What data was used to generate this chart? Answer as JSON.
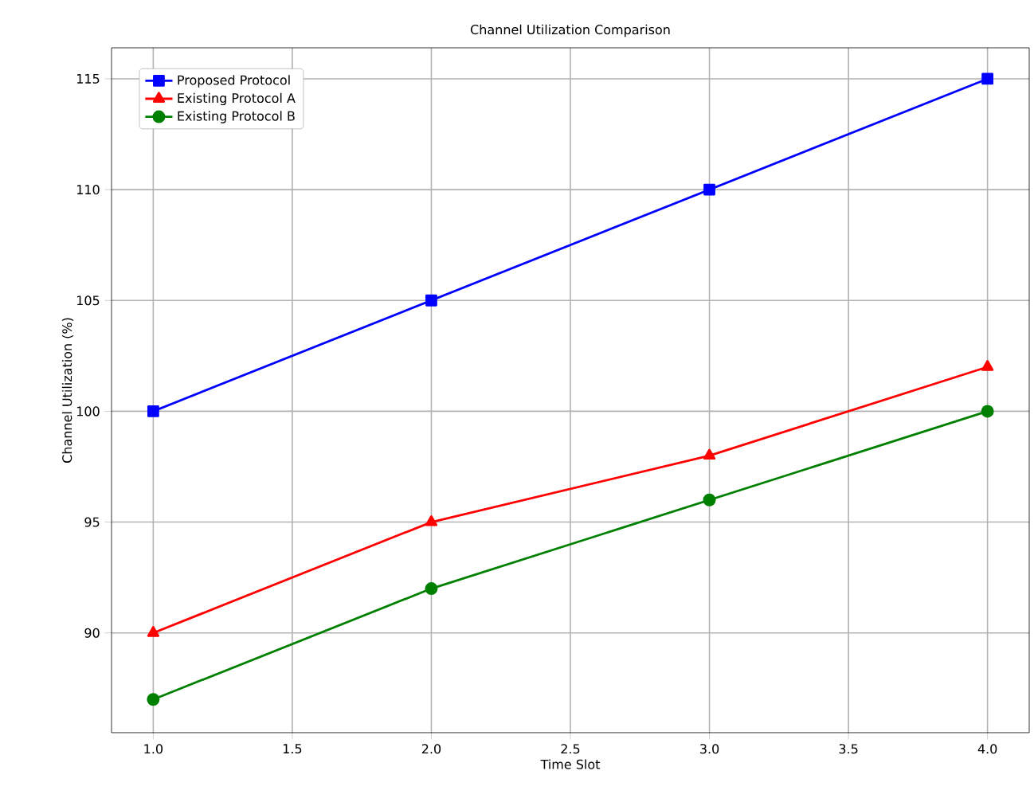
{
  "chart_data": {
    "type": "line",
    "title": "Channel Utilization Comparison",
    "xlabel": "Time Slot",
    "ylabel": "Channel Utilization (%)",
    "x": [
      1,
      2,
      3,
      4
    ],
    "series": [
      {
        "name": "Proposed Protocol",
        "color": "#0000ff",
        "marker": "square",
        "values": [
          100,
          105,
          110,
          115
        ]
      },
      {
        "name": "Existing Protocol A",
        "color": "#ff0000",
        "marker": "triangle",
        "values": [
          90,
          95,
          98,
          102
        ]
      },
      {
        "name": "Existing Protocol B",
        "color": "#008000",
        "marker": "circle",
        "values": [
          87,
          92,
          96,
          100
        ]
      }
    ],
    "xlim": [
      0.85,
      4.15
    ],
    "ylim": [
      85.5,
      116.4
    ],
    "xticks": [
      {
        "value": 1,
        "label": "1.0"
      },
      {
        "value": 1.5,
        "label": "1.5"
      },
      {
        "value": 2,
        "label": "2.0"
      },
      {
        "value": 2.5,
        "label": "2.5"
      },
      {
        "value": 3,
        "label": "3.0"
      },
      {
        "value": 3.5,
        "label": "3.5"
      },
      {
        "value": 4,
        "label": "4.0"
      }
    ],
    "yticks": [
      90,
      95,
      100,
      105,
      110,
      115
    ],
    "grid": true,
    "legend": "top left",
    "line_style": "solid"
  }
}
